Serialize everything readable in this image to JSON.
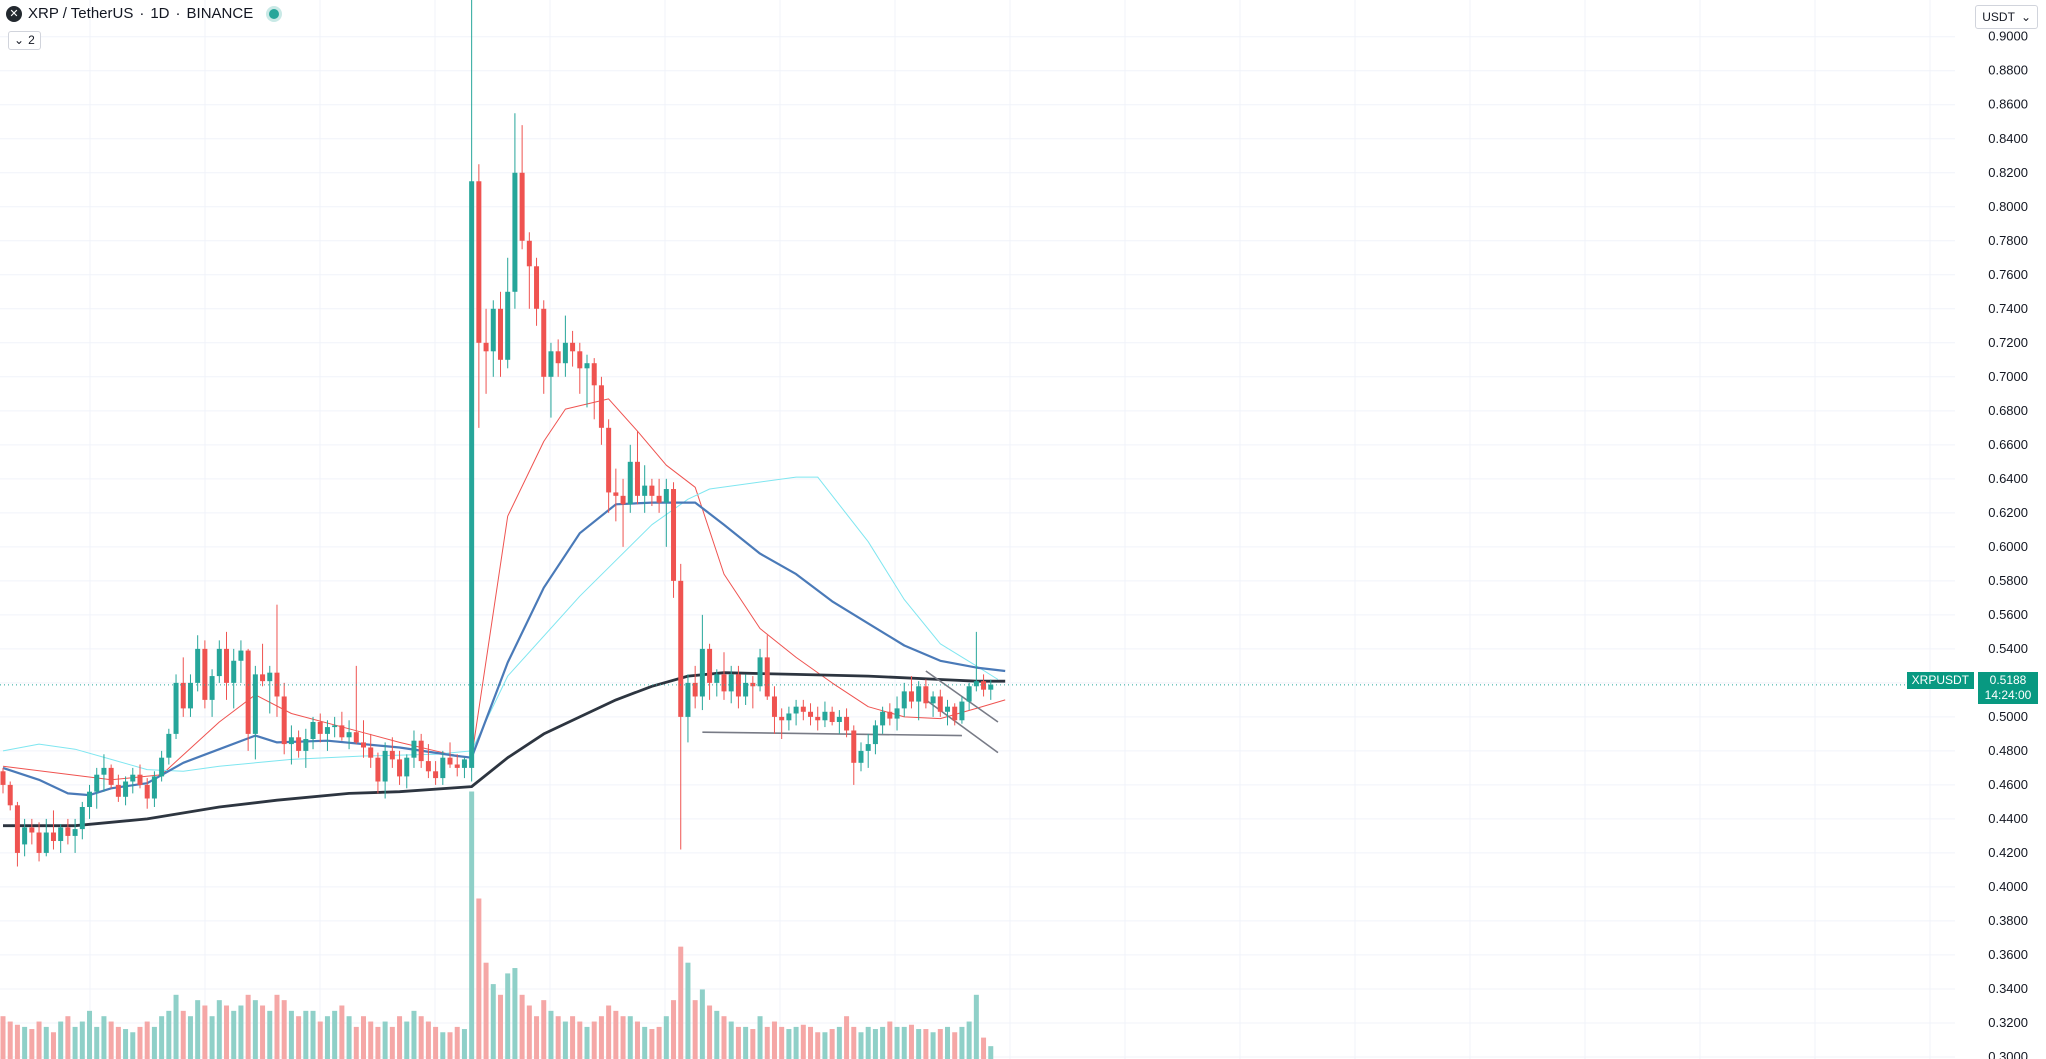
{
  "legend": {
    "symbol": "XRP / TetherUS",
    "interval": "1D",
    "exchange": "BINANCE",
    "separator": "·"
  },
  "indicators_toggle": {
    "label": "2"
  },
  "currency_selector": {
    "label": "USDT"
  },
  "price_badge": {
    "symbol": "XRPUSDT",
    "price": "0.5188",
    "countdown": "14:24:00"
  },
  "colors": {
    "up": "#26a69a",
    "down": "#ef5350",
    "vol_up": "#8fd0c8",
    "vol_down": "#f5a7a6",
    "ma_red": "#ef5350",
    "ma_cyan": "#7fe6f0",
    "ma_blue": "#4a7ab8",
    "ma_black": "#2d3540",
    "grid": "#f0f3fa"
  },
  "chart_data": {
    "type": "candlestick",
    "y_axis_ticks": [
      "0.9000",
      "0.8800",
      "0.8600",
      "0.8400",
      "0.8200",
      "0.8000",
      "0.7800",
      "0.7600",
      "0.7400",
      "0.7200",
      "0.7000",
      "0.6800",
      "0.6600",
      "0.6400",
      "0.6200",
      "0.6000",
      "0.5800",
      "0.5600",
      "0.5400",
      "0.5200",
      "0.5000",
      "0.4800",
      "0.4600",
      "0.4400",
      "0.4200",
      "0.4000",
      "0.3800",
      "0.3600",
      "0.3400",
      "0.3200",
      "0.3000"
    ],
    "y_range": [
      0.2988,
      0.9216
    ],
    "last_price": 0.5188,
    "candles_ohlcv": [
      [
        0.468,
        0.47,
        0.455,
        0.46,
        40
      ],
      [
        0.46,
        0.462,
        0.445,
        0.448,
        35
      ],
      [
        0.448,
        0.45,
        0.412,
        0.42,
        32
      ],
      [
        0.425,
        0.44,
        0.418,
        0.435,
        30
      ],
      [
        0.435,
        0.44,
        0.425,
        0.432,
        28
      ],
      [
        0.432,
        0.438,
        0.415,
        0.42,
        35
      ],
      [
        0.42,
        0.44,
        0.418,
        0.432,
        30
      ],
      [
        0.432,
        0.445,
        0.422,
        0.427,
        25
      ],
      [
        0.427,
        0.437,
        0.42,
        0.435,
        35
      ],
      [
        0.435,
        0.44,
        0.425,
        0.43,
        40
      ],
      [
        0.43,
        0.44,
        0.42,
        0.434,
        30
      ],
      [
        0.434,
        0.45,
        0.428,
        0.447,
        35
      ],
      [
        0.447,
        0.46,
        0.44,
        0.456,
        45
      ],
      [
        0.456,
        0.47,
        0.446,
        0.466,
        30
      ],
      [
        0.466,
        0.478,
        0.456,
        0.47,
        40
      ],
      [
        0.47,
        0.472,
        0.458,
        0.46,
        35
      ],
      [
        0.46,
        0.466,
        0.45,
        0.453,
        30
      ],
      [
        0.453,
        0.465,
        0.448,
        0.462,
        28
      ],
      [
        0.462,
        0.47,
        0.455,
        0.466,
        25
      ],
      [
        0.466,
        0.472,
        0.458,
        0.46,
        30
      ],
      [
        0.46,
        0.464,
        0.446,
        0.452,
        35
      ],
      [
        0.452,
        0.468,
        0.447,
        0.465,
        30
      ],
      [
        0.465,
        0.48,
        0.462,
        0.476,
        40
      ],
      [
        0.476,
        0.493,
        0.472,
        0.49,
        45
      ],
      [
        0.49,
        0.525,
        0.487,
        0.52,
        60
      ],
      [
        0.52,
        0.535,
        0.5,
        0.505,
        45
      ],
      [
        0.505,
        0.525,
        0.5,
        0.52,
        40
      ],
      [
        0.52,
        0.548,
        0.515,
        0.54,
        55
      ],
      [
        0.54,
        0.545,
        0.505,
        0.51,
        50
      ],
      [
        0.51,
        0.528,
        0.5,
        0.524,
        40
      ],
      [
        0.524,
        0.545,
        0.52,
        0.54,
        55
      ],
      [
        0.54,
        0.55,
        0.51,
        0.52,
        50
      ],
      [
        0.52,
        0.54,
        0.505,
        0.533,
        45
      ],
      [
        0.533,
        0.545,
        0.52,
        0.539,
        50
      ],
      [
        0.539,
        0.54,
        0.48,
        0.49,
        60
      ],
      [
        0.49,
        0.53,
        0.475,
        0.525,
        55
      ],
      [
        0.525,
        0.543,
        0.518,
        0.521,
        50
      ],
      [
        0.521,
        0.53,
        0.502,
        0.526,
        45
      ],
      [
        0.526,
        0.566,
        0.5,
        0.512,
        60
      ],
      [
        0.512,
        0.52,
        0.478,
        0.484,
        55
      ],
      [
        0.484,
        0.495,
        0.472,
        0.488,
        45
      ],
      [
        0.488,
        0.492,
        0.476,
        0.48,
        40
      ],
      [
        0.48,
        0.493,
        0.47,
        0.487,
        45
      ],
      [
        0.487,
        0.5,
        0.481,
        0.497,
        45
      ],
      [
        0.497,
        0.502,
        0.485,
        0.49,
        35
      ],
      [
        0.49,
        0.498,
        0.48,
        0.494,
        40
      ],
      [
        0.494,
        0.5,
        0.488,
        0.495,
        45
      ],
      [
        0.495,
        0.503,
        0.486,
        0.488,
        50
      ],
      [
        0.488,
        0.498,
        0.481,
        0.491,
        40
      ],
      [
        0.491,
        0.53,
        0.484,
        0.485,
        30
      ],
      [
        0.485,
        0.498,
        0.476,
        0.482,
        40
      ],
      [
        0.482,
        0.49,
        0.47,
        0.476,
        35
      ],
      [
        0.476,
        0.479,
        0.455,
        0.462,
        30
      ],
      [
        0.462,
        0.485,
        0.452,
        0.48,
        35
      ],
      [
        0.48,
        0.488,
        0.47,
        0.475,
        30
      ],
      [
        0.475,
        0.48,
        0.46,
        0.465,
        40
      ],
      [
        0.465,
        0.478,
        0.458,
        0.476,
        35
      ],
      [
        0.476,
        0.492,
        0.47,
        0.486,
        45
      ],
      [
        0.486,
        0.49,
        0.47,
        0.474,
        40
      ],
      [
        0.474,
        0.484,
        0.464,
        0.468,
        35
      ],
      [
        0.468,
        0.474,
        0.46,
        0.464,
        30
      ],
      [
        0.464,
        0.48,
        0.46,
        0.476,
        25
      ],
      [
        0.476,
        0.485,
        0.47,
        0.472,
        25
      ],
      [
        0.472,
        0.478,
        0.465,
        0.47,
        30
      ],
      [
        0.47,
        0.476,
        0.464,
        0.475,
        28
      ],
      [
        0.47,
        0.95,
        0.462,
        0.815,
        250
      ],
      [
        0.815,
        0.825,
        0.67,
        0.72,
        150
      ],
      [
        0.72,
        0.74,
        0.69,
        0.715,
        90
      ],
      [
        0.715,
        0.745,
        0.7,
        0.74,
        70
      ],
      [
        0.74,
        0.75,
        0.7,
        0.71,
        60
      ],
      [
        0.71,
        0.77,
        0.705,
        0.75,
        80
      ],
      [
        0.75,
        0.855,
        0.74,
        0.82,
        85
      ],
      [
        0.82,
        0.848,
        0.775,
        0.78,
        60
      ],
      [
        0.78,
        0.785,
        0.74,
        0.765,
        50
      ],
      [
        0.765,
        0.77,
        0.73,
        0.74,
        40
      ],
      [
        0.74,
        0.745,
        0.69,
        0.7,
        55
      ],
      [
        0.7,
        0.72,
        0.676,
        0.715,
        45
      ],
      [
        0.715,
        0.722,
        0.7,
        0.708,
        40
      ],
      [
        0.708,
        0.736,
        0.7,
        0.72,
        35
      ],
      [
        0.72,
        0.727,
        0.706,
        0.715,
        40
      ],
      [
        0.715,
        0.72,
        0.69,
        0.705,
        35
      ],
      [
        0.705,
        0.713,
        0.682,
        0.708,
        30
      ],
      [
        0.708,
        0.711,
        0.675,
        0.695,
        35
      ],
      [
        0.695,
        0.7,
        0.66,
        0.67,
        40
      ],
      [
        0.67,
        0.675,
        0.62,
        0.632,
        50
      ],
      [
        0.632,
        0.646,
        0.615,
        0.63,
        45
      ],
      [
        0.63,
        0.64,
        0.6,
        0.625,
        40
      ],
      [
        0.625,
        0.66,
        0.62,
        0.65,
        40
      ],
      [
        0.65,
        0.668,
        0.625,
        0.63,
        35
      ],
      [
        0.63,
        0.648,
        0.62,
        0.636,
        30
      ],
      [
        0.636,
        0.64,
        0.624,
        0.63,
        28
      ],
      [
        0.63,
        0.64,
        0.62,
        0.626,
        30
      ],
      [
        0.626,
        0.64,
        0.6,
        0.634,
        40
      ],
      [
        0.634,
        0.638,
        0.57,
        0.58,
        55
      ],
      [
        0.58,
        0.59,
        0.422,
        0.5,
        105
      ],
      [
        0.5,
        0.525,
        0.485,
        0.52,
        90
      ],
      [
        0.52,
        0.53,
        0.505,
        0.512,
        55
      ],
      [
        0.512,
        0.56,
        0.504,
        0.54,
        65
      ],
      [
        0.54,
        0.543,
        0.51,
        0.52,
        50
      ],
      [
        0.52,
        0.528,
        0.512,
        0.525,
        45
      ],
      [
        0.525,
        0.538,
        0.51,
        0.515,
        40
      ],
      [
        0.515,
        0.53,
        0.508,
        0.525,
        35
      ],
      [
        0.525,
        0.53,
        0.505,
        0.512,
        30
      ],
      [
        0.512,
        0.525,
        0.507,
        0.52,
        30
      ],
      [
        0.52,
        0.524,
        0.505,
        0.518,
        28
      ],
      [
        0.518,
        0.54,
        0.515,
        0.535,
        40
      ],
      [
        0.535,
        0.548,
        0.51,
        0.512,
        30
      ],
      [
        0.512,
        0.518,
        0.49,
        0.5,
        35
      ],
      [
        0.5,
        0.505,
        0.487,
        0.498,
        30
      ],
      [
        0.498,
        0.506,
        0.492,
        0.502,
        28
      ],
      [
        0.502,
        0.51,
        0.495,
        0.506,
        30
      ],
      [
        0.506,
        0.51,
        0.498,
        0.503,
        32
      ],
      [
        0.503,
        0.508,
        0.495,
        0.5,
        30
      ],
      [
        0.5,
        0.506,
        0.492,
        0.498,
        25
      ],
      [
        0.498,
        0.509,
        0.494,
        0.503,
        25
      ],
      [
        0.503,
        0.506,
        0.495,
        0.497,
        28
      ],
      [
        0.497,
        0.504,
        0.49,
        0.5,
        30
      ],
      [
        0.5,
        0.505,
        0.488,
        0.492,
        40
      ],
      [
        0.492,
        0.495,
        0.46,
        0.473,
        30
      ],
      [
        0.473,
        0.485,
        0.468,
        0.48,
        25
      ],
      [
        0.48,
        0.49,
        0.47,
        0.484,
        30
      ],
      [
        0.484,
        0.498,
        0.478,
        0.495,
        28
      ],
      [
        0.495,
        0.506,
        0.49,
        0.503,
        30
      ],
      [
        0.503,
        0.508,
        0.495,
        0.499,
        35
      ],
      [
        0.499,
        0.512,
        0.492,
        0.505,
        30
      ],
      [
        0.505,
        0.52,
        0.5,
        0.515,
        30
      ],
      [
        0.515,
        0.524,
        0.505,
        0.509,
        32
      ],
      [
        0.509,
        0.521,
        0.498,
        0.518,
        28
      ],
      [
        0.518,
        0.522,
        0.505,
        0.508,
        28
      ],
      [
        0.508,
        0.515,
        0.5,
        0.512,
        25
      ],
      [
        0.512,
        0.516,
        0.5,
        0.503,
        28
      ],
      [
        0.503,
        0.51,
        0.495,
        0.506,
        30
      ],
      [
        0.506,
        0.508,
        0.495,
        0.498,
        25
      ],
      [
        0.498,
        0.512,
        0.496,
        0.509,
        30
      ],
      [
        0.509,
        0.52,
        0.504,
        0.518,
        35
      ],
      [
        0.518,
        0.55,
        0.515,
        0.521,
        60
      ],
      [
        0.521,
        0.525,
        0.512,
        0.516,
        20
      ],
      [
        0.516,
        0.522,
        0.51,
        0.519,
        12
      ]
    ],
    "moving_averages": [
      {
        "color_key": "ma_red",
        "width": 1,
        "points": [
          [
            0,
            0.471
          ],
          [
            15,
            0.463
          ],
          [
            22,
            0.466
          ],
          [
            30,
            0.497
          ],
          [
            35,
            0.513
          ],
          [
            40,
            0.502
          ],
          [
            48,
            0.493
          ],
          [
            55,
            0.485
          ],
          [
            62,
            0.478
          ],
          [
            65,
            0.476
          ],
          [
            70,
            0.618
          ],
          [
            75,
            0.662
          ],
          [
            78,
            0.681
          ],
          [
            84,
            0.687
          ],
          [
            88,
            0.668
          ],
          [
            92,
            0.648
          ],
          [
            96,
            0.635
          ],
          [
            100,
            0.584
          ],
          [
            105,
            0.552
          ],
          [
            110,
            0.535
          ],
          [
            115,
            0.52
          ],
          [
            120,
            0.506
          ],
          [
            125,
            0.5
          ],
          [
            130,
            0.499
          ],
          [
            135,
            0.505
          ],
          [
            139,
            0.51
          ]
        ]
      },
      {
        "color_key": "ma_cyan",
        "width": 1,
        "points": [
          [
            0,
            0.48
          ],
          [
            5,
            0.484
          ],
          [
            10,
            0.481
          ],
          [
            15,
            0.475
          ],
          [
            20,
            0.469
          ],
          [
            25,
            0.468
          ],
          [
            30,
            0.471
          ],
          [
            40,
            0.475
          ],
          [
            50,
            0.477
          ],
          [
            60,
            0.478
          ],
          [
            65,
            0.48
          ],
          [
            70,
            0.524
          ],
          [
            80,
            0.571
          ],
          [
            90,
            0.613
          ],
          [
            95,
            0.628
          ],
          [
            98,
            0.634
          ],
          [
            110,
            0.641
          ],
          [
            113,
            0.641
          ],
          [
            120,
            0.603
          ],
          [
            125,
            0.569
          ],
          [
            130,
            0.543
          ],
          [
            135,
            0.53
          ],
          [
            138,
            0.522
          ]
        ]
      },
      {
        "color_key": "ma_blue",
        "width": 2.2,
        "points": [
          [
            0,
            0.47
          ],
          [
            5,
            0.463
          ],
          [
            9,
            0.455
          ],
          [
            12,
            0.454
          ],
          [
            15,
            0.458
          ],
          [
            20,
            0.461
          ],
          [
            25,
            0.473
          ],
          [
            30,
            0.481
          ],
          [
            35,
            0.489
          ],
          [
            38,
            0.485
          ],
          [
            45,
            0.486
          ],
          [
            55,
            0.482
          ],
          [
            63,
            0.477
          ],
          [
            65,
            0.476
          ],
          [
            70,
            0.532
          ],
          [
            75,
            0.576
          ],
          [
            80,
            0.608
          ],
          [
            85,
            0.625
          ],
          [
            90,
            0.626
          ],
          [
            96,
            0.626
          ],
          [
            100,
            0.613
          ],
          [
            105,
            0.596
          ],
          [
            110,
            0.584
          ],
          [
            115,
            0.568
          ],
          [
            120,
            0.555
          ],
          [
            125,
            0.542
          ],
          [
            130,
            0.533
          ],
          [
            135,
            0.529
          ],
          [
            139,
            0.527
          ]
        ]
      },
      {
        "color_key": "ma_black",
        "width": 2.8,
        "points": [
          [
            0,
            0.436
          ],
          [
            10,
            0.436
          ],
          [
            20,
            0.44
          ],
          [
            30,
            0.447
          ],
          [
            38,
            0.451
          ],
          [
            48,
            0.455
          ],
          [
            55,
            0.456
          ],
          [
            65,
            0.459
          ],
          [
            70,
            0.476
          ],
          [
            75,
            0.49
          ],
          [
            80,
            0.5
          ],
          [
            85,
            0.51
          ],
          [
            90,
            0.518
          ],
          [
            95,
            0.524
          ],
          [
            100,
            0.526
          ],
          [
            110,
            0.525
          ],
          [
            120,
            0.524
          ],
          [
            130,
            0.522
          ],
          [
            135,
            0.521
          ],
          [
            139,
            0.521
          ]
        ]
      }
    ],
    "trend_lines": [
      {
        "from": [
          97,
          0.491
        ],
        "to": [
          133,
          0.489
        ],
        "color": "#787b86"
      },
      {
        "from": [
          128,
          0.527
        ],
        "to": [
          138,
          0.497
        ],
        "color": "#787b86"
      },
      {
        "from": [
          128,
          0.51
        ],
        "to": [
          138,
          0.479
        ],
        "color": "#787b86"
      }
    ]
  }
}
